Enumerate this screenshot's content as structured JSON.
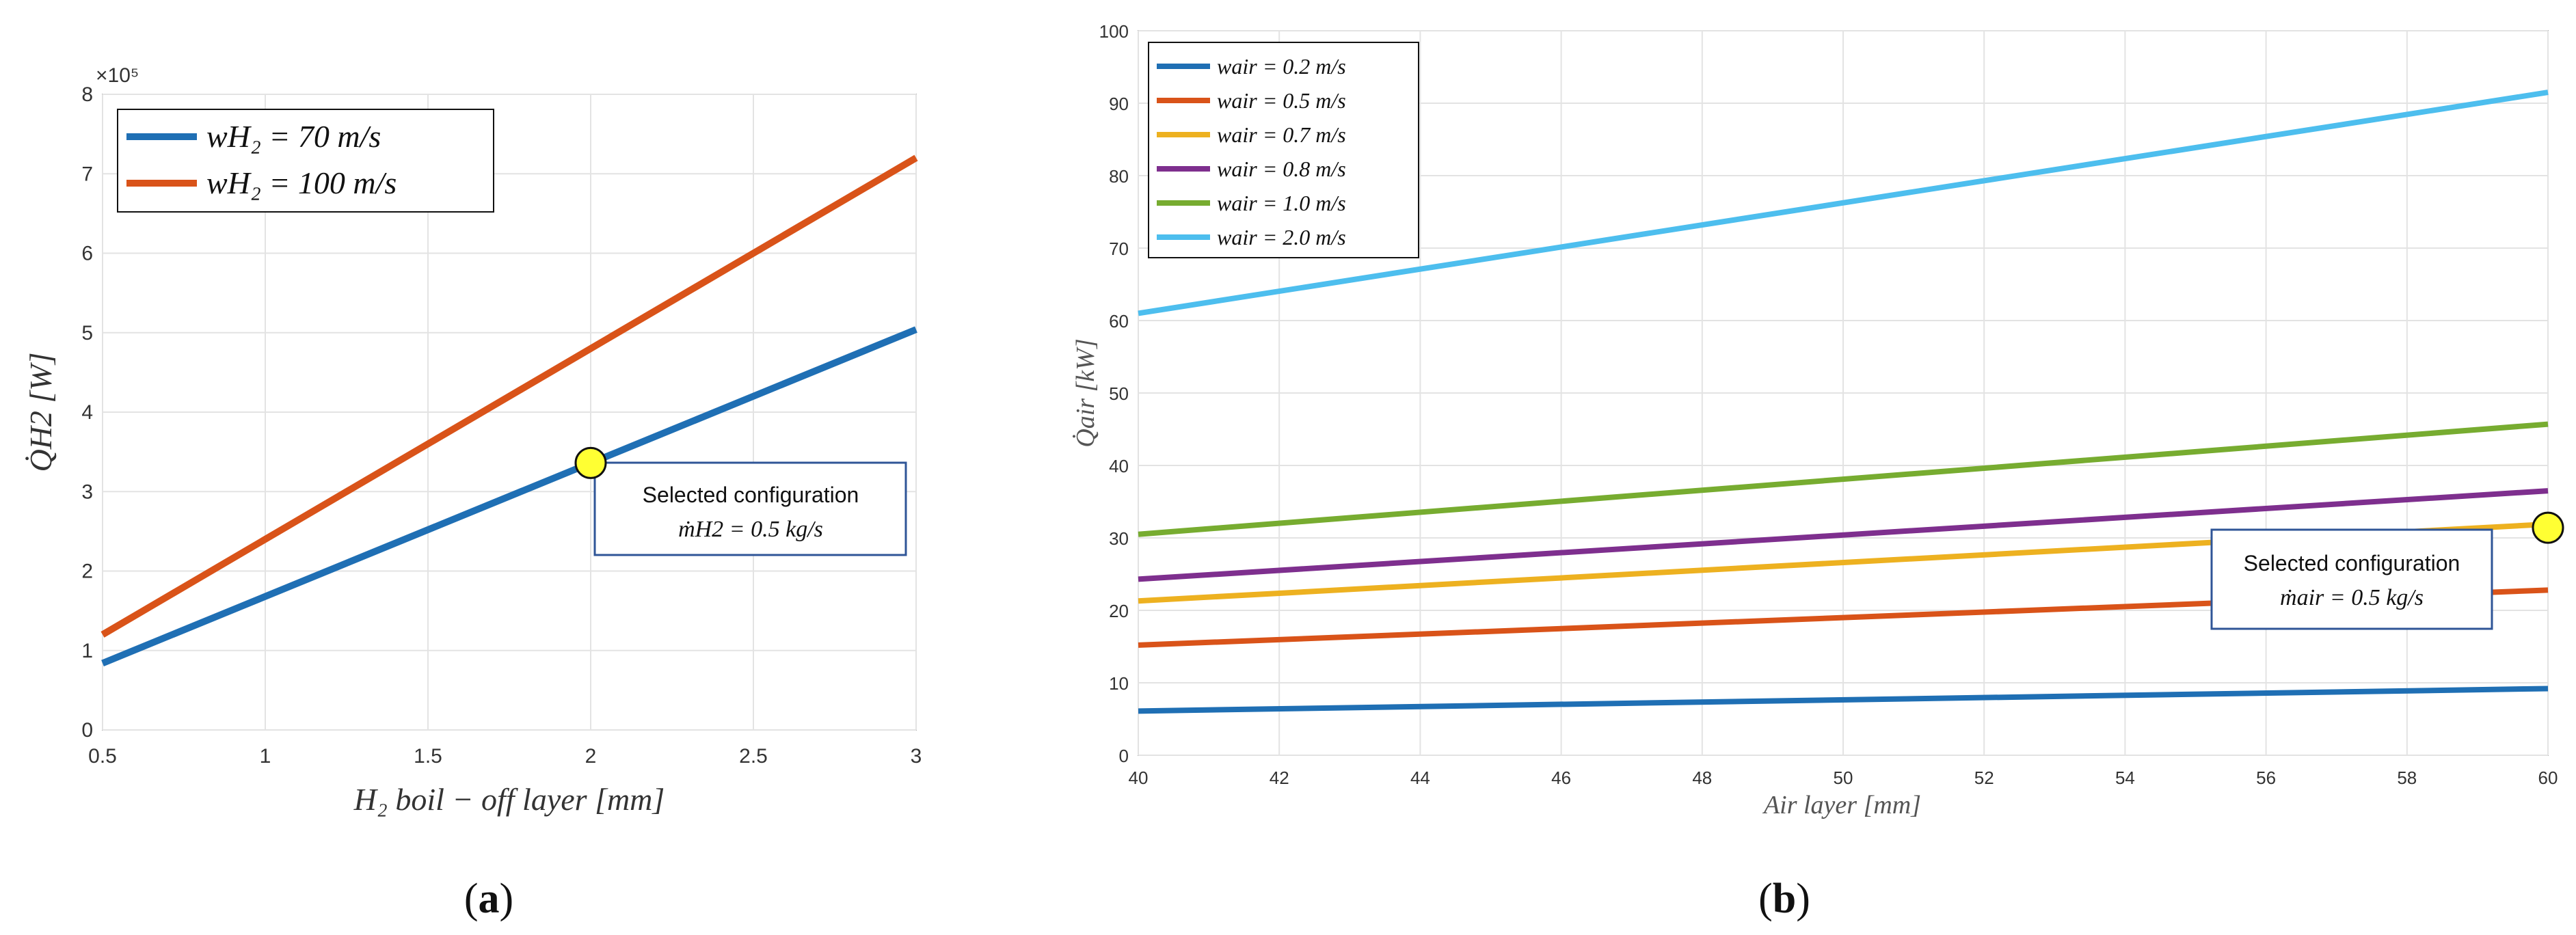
{
  "chart_data": [
    {
      "type": "line",
      "panel_caption_open": "(",
      "panel_caption_letter": "a",
      "panel_caption_close": ")",
      "xlabel": "H₂ boil − off layer [mm]",
      "ylabel": "Q̇H2 [W]",
      "y_exponent": "×10⁵",
      "xlim": [
        0.5,
        3
      ],
      "ylim": [
        0,
        8
      ],
      "x_ticks": [
        "0.5",
        "1",
        "1.5",
        "2",
        "2.5",
        "3"
      ],
      "y_ticks": [
        "0",
        "1",
        "2",
        "3",
        "4",
        "5",
        "6",
        "7",
        "8"
      ],
      "grid": true,
      "legend_position": "top-left",
      "series": [
        {
          "name": "wH₂ = 70 m/s",
          "color": "#1f6fb4",
          "x": [
            0.5,
            3
          ],
          "y": [
            0.84,
            5.04
          ]
        },
        {
          "name": "wH₂ = 100 m/s",
          "color": "#d95319",
          "x": [
            0.5,
            3
          ],
          "y": [
            1.2,
            7.2
          ]
        }
      ],
      "marker": {
        "x": 2.0,
        "y": 3.36,
        "color": "#ffff33"
      },
      "annotation": {
        "line1": "Selected configuration",
        "line2": "ṁH2 = 0.5 kg/s"
      }
    },
    {
      "type": "line",
      "panel_caption_open": "(",
      "panel_caption_letter": "b",
      "panel_caption_close": ")",
      "xlabel": "Air layer [mm]",
      "ylabel": "Q̇air [kW]",
      "xlim": [
        40,
        60
      ],
      "ylim": [
        0,
        100
      ],
      "x_ticks": [
        "40",
        "42",
        "44",
        "46",
        "48",
        "50",
        "52",
        "54",
        "56",
        "58",
        "60"
      ],
      "y_ticks": [
        "0",
        "10",
        "20",
        "30",
        "40",
        "50",
        "60",
        "70",
        "80",
        "90",
        "100"
      ],
      "grid": true,
      "legend_position": "top-left",
      "series": [
        {
          "name": "wair = 0.2 m/s",
          "color": "#1f6fb4",
          "x": [
            40,
            60
          ],
          "y": [
            6.1,
            9.2
          ]
        },
        {
          "name": "wair = 0.5 m/s",
          "color": "#d95319",
          "x": [
            40,
            60
          ],
          "y": [
            15.2,
            22.8
          ]
        },
        {
          "name": "wair = 0.7 m/s",
          "color": "#edb120",
          "x": [
            40,
            60
          ],
          "y": [
            21.3,
            31.9
          ]
        },
        {
          "name": "wair = 0.8 m/s",
          "color": "#7e2f8e",
          "x": [
            40,
            60
          ],
          "y": [
            24.3,
            36.5
          ]
        },
        {
          "name": "wair = 1.0 m/s",
          "color": "#77ac30",
          "x": [
            40,
            60
          ],
          "y": [
            30.5,
            45.7
          ]
        },
        {
          "name": "wair = 2.0 m/s",
          "color": "#4dbeee",
          "x": [
            40,
            60
          ],
          "y": [
            61.0,
            91.5
          ]
        }
      ],
      "marker": {
        "x": 60,
        "y": 31.4,
        "color": "#ffff33"
      },
      "annotation": {
        "line1": "Selected configuration",
        "line2": "ṁair = 0.5 kg/s"
      }
    }
  ]
}
